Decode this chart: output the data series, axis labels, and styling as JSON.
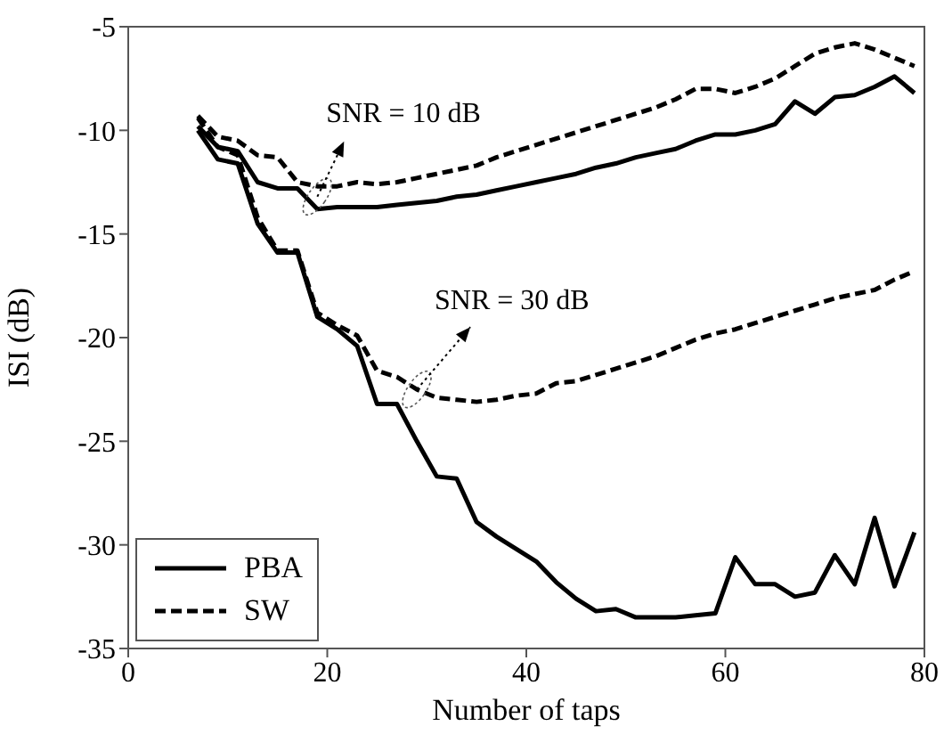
{
  "chart_data": {
    "type": "line",
    "xlabel": "Number of taps",
    "ylabel": "ISI (dB)",
    "x": [
      7,
      9,
      11,
      13,
      15,
      17,
      19,
      21,
      23,
      25,
      27,
      29,
      31,
      33,
      35,
      37,
      39,
      41,
      43,
      45,
      47,
      49,
      51,
      53,
      55,
      57,
      59,
      61,
      63,
      65,
      67,
      69,
      71,
      73,
      75,
      77,
      79
    ],
    "series": [
      {
        "name": "PBA",
        "color": "#000000",
        "line_style": "solid",
        "values": [
          -9.8,
          -10.8,
          -11.0,
          -12.5,
          -12.8,
          -12.8,
          -13.8,
          -13.7,
          -13.7,
          -13.7,
          -13.6,
          -13.5,
          -13.4,
          -13.2,
          -13.1,
          -12.9,
          -12.7,
          -12.5,
          -12.3,
          -12.1,
          -11.8,
          -11.6,
          -11.3,
          -11.1,
          -10.9,
          -10.5,
          -10.2,
          -10.2,
          -10.0,
          -9.7,
          -8.6,
          -9.2,
          -8.4,
          -8.3,
          -7.9,
          -7.4,
          -8.2
        ]
      },
      {
        "name": "SW",
        "color": "#000000",
        "line_style": "dashed",
        "values": [
          -9.3,
          -10.3,
          -10.5,
          -11.2,
          -11.3,
          -12.5,
          -12.7,
          -12.7,
          -12.5,
          -12.6,
          -12.5,
          -12.3,
          -12.1,
          -11.9,
          -11.7,
          -11.3,
          -11.0,
          -10.7,
          -10.4,
          -10.1,
          -9.8,
          -9.5,
          -9.2,
          -8.9,
          -8.5,
          -8.0,
          -8.0,
          -8.2,
          -7.9,
          -7.5,
          -6.9,
          -6.3,
          -6.0,
          -5.8,
          -6.1,
          -6.5,
          -6.9
        ]
      },
      {
        "color": "#000000",
        "line_style": "solid",
        "values": [
          -10.0,
          -11.4,
          -11.6,
          -14.5,
          -15.9,
          -15.9,
          -19.0,
          -19.6,
          -20.4,
          -23.2,
          -23.2,
          -25.0,
          -26.7,
          -26.8,
          -28.9,
          -29.6,
          -30.2,
          -30.8,
          -31.8,
          -32.6,
          -33.2,
          -33.1,
          -33.5,
          -33.5,
          -33.5,
          -33.4,
          -33.3,
          -30.6,
          -31.9,
          -31.9,
          -32.5,
          -32.3,
          -30.5,
          -31.9,
          -28.7,
          -32.0,
          -29.4
        ]
      },
      {
        "color": "#000000",
        "line_style": "dashed",
        "values": [
          -9.4,
          -10.8,
          -11.2,
          -14.2,
          -15.8,
          -15.8,
          -18.8,
          -19.4,
          -19.9,
          -21.6,
          -21.9,
          -22.5,
          -22.9,
          -23.0,
          -23.1,
          -23.0,
          -22.8,
          -22.7,
          -22.2,
          -22.1,
          -21.8,
          -21.5,
          -21.2,
          -20.9,
          -20.5,
          -20.1,
          -19.8,
          -19.6,
          -19.3,
          -19.0,
          -18.7,
          -18.4,
          -18.1,
          -17.9,
          -17.7,
          -17.2,
          -16.8
        ]
      }
    ],
    "annotations": [
      {
        "text": "SNR = 10 dB",
        "x": 19,
        "y": -13.2
      },
      {
        "text": "SNR = 30 dB",
        "x": 29,
        "y": -22.5
      }
    ],
    "xlim": [
      0,
      80
    ],
    "xticks": [
      0,
      20,
      40,
      60,
      80
    ],
    "ylim": [
      -35,
      -5
    ],
    "yticks": [
      -35,
      -30,
      -25,
      -20,
      -15,
      -10,
      -5
    ],
    "legend": "bottom left"
  }
}
